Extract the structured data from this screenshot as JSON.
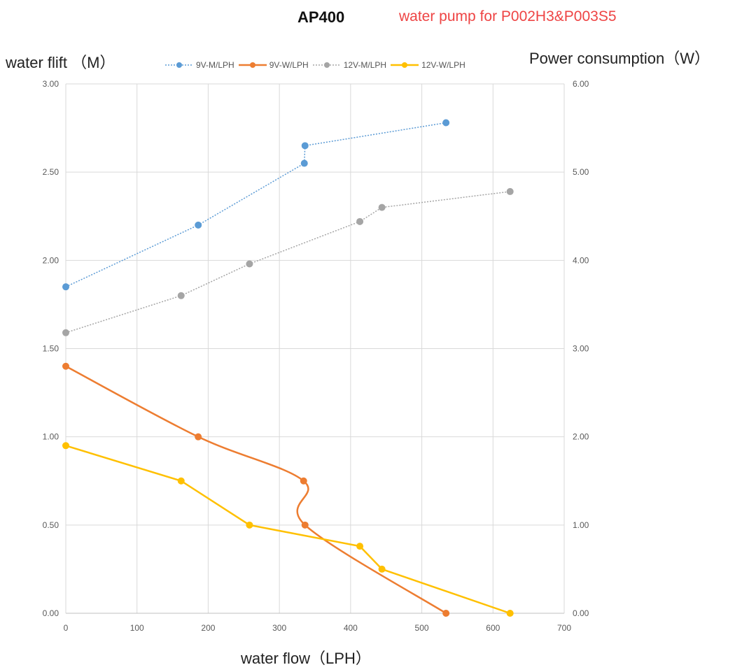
{
  "title": "AP400",
  "subtitle": "water pump for P002H3&P003S5",
  "chart_data": {
    "type": "line",
    "title": "AP400",
    "subtitle": "water pump for P002H3&P003S5",
    "xlabel": "water flow（LPH）",
    "ylabel": "water flift （M）",
    "ylabel_right": "Power consumption（W）",
    "xlim": [
      0,
      700
    ],
    "xticks": [
      "0",
      "100",
      "200",
      "300",
      "400",
      "500",
      "600",
      "700"
    ],
    "ylim": [
      0,
      3
    ],
    "yticks": [
      "0.00",
      "0.50",
      "1.00",
      "1.50",
      "2.00",
      "2.50",
      "3.00"
    ],
    "ylim_right": [
      0,
      6
    ],
    "yticks_right": [
      "0.00",
      "1.00",
      "2.00",
      "3.00",
      "4.00",
      "5.00",
      "6.00"
    ],
    "grid": true,
    "legend_position": "top",
    "series": [
      {
        "name": "9V-M/LPH",
        "axis": "left",
        "style": "dotted",
        "color": "#5b9bd5",
        "x": [
          0,
          186,
          335,
          336,
          534
        ],
        "y": [
          1.85,
          2.2,
          2.55,
          2.65,
          2.78
        ]
      },
      {
        "name": "9V-W/LPH",
        "axis": "left",
        "style": "smooth",
        "color": "#ed7d31",
        "x": [
          0,
          186,
          334,
          336,
          534
        ],
        "y": [
          1.4,
          1.0,
          0.75,
          0.5,
          0.0
        ]
      },
      {
        "name": "12V-M/LPH",
        "axis": "left",
        "style": "dotted",
        "color": "#a5a5a5",
        "x": [
          0,
          162,
          258,
          413,
          444,
          624
        ],
        "y": [
          1.59,
          1.8,
          1.98,
          2.22,
          2.3,
          2.39
        ]
      },
      {
        "name": "12V-W/LPH",
        "axis": "left",
        "style": "solid",
        "color": "#ffc000",
        "x": [
          0,
          162,
          258,
          413,
          444,
          624
        ],
        "y": [
          0.95,
          0.75,
          0.5,
          0.38,
          0.25,
          0.0
        ]
      }
    ]
  }
}
